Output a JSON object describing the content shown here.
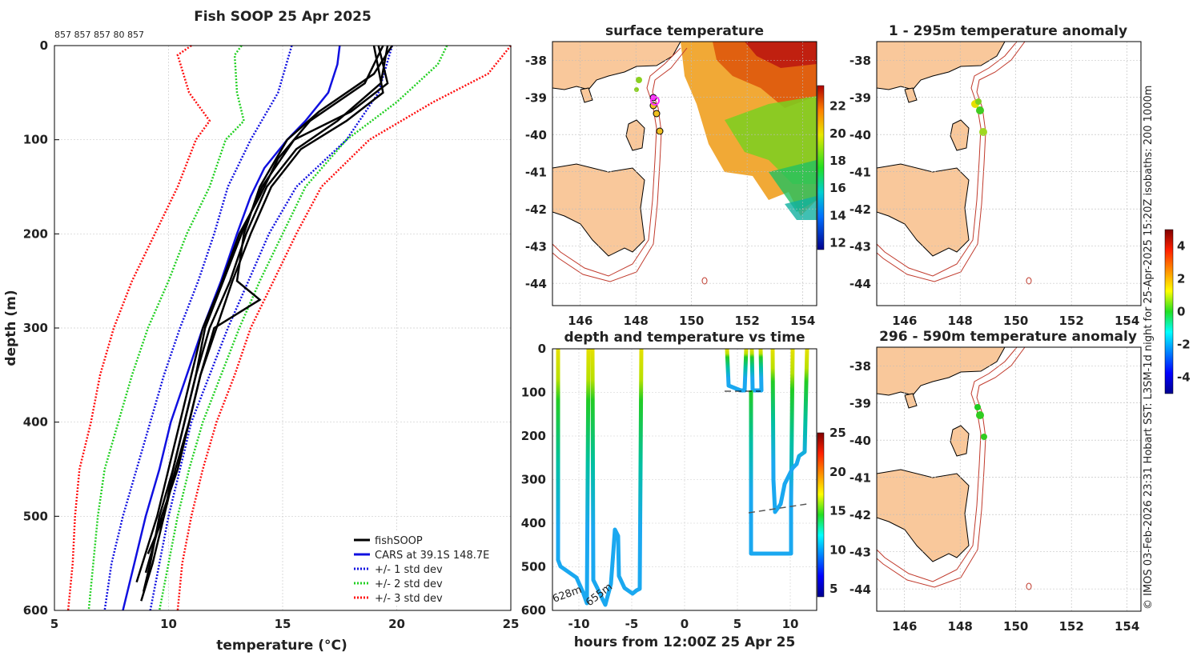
{
  "chart_data": [
    {
      "type": "line",
      "title": "Fish SOOP 25 Apr 2025",
      "top_counts": "857 857 857 80 857",
      "xlabel": "temperature",
      "xlabel_unit": "(°C)",
      "ylabel": "depth (m)",
      "xlim": [
        5,
        25
      ],
      "ylim": [
        0,
        600
      ],
      "xticks": [
        "5",
        "10",
        "15",
        "20",
        "25"
      ],
      "yticks": [
        "0",
        "100",
        "200",
        "300",
        "400",
        "500",
        "600"
      ],
      "legend": [
        "fishSOOP",
        "CARS at 39.1S 148.7E",
        "+/- 1 std dev",
        "+/- 2 std dev",
        "+/- 3 std dev"
      ],
      "series": [
        {
          "name": "CARS at 39.1S 148.7E",
          "color": "#1010e0",
          "style": "solid",
          "depth": [
            0,
            20,
            50,
            80,
            100,
            130,
            160,
            200,
            250,
            300,
            350,
            400,
            450,
            500,
            550,
            600
          ],
          "temp": [
            17.5,
            17.4,
            17.0,
            16.0,
            15.2,
            14.2,
            13.6,
            13.0,
            12.3,
            11.5,
            10.8,
            10.1,
            9.6,
            9.0,
            8.5,
            8.0
          ]
        },
        {
          "name": "-1 std",
          "color": "#1010e0",
          "style": "dot",
          "depth": [
            0,
            50,
            100,
            150,
            200,
            250,
            300,
            350,
            400,
            450,
            500,
            550,
            600
          ],
          "temp": [
            15.4,
            14.8,
            13.6,
            12.6,
            12.0,
            11.3,
            10.5,
            9.8,
            9.2,
            8.6,
            8.0,
            7.5,
            7.2
          ]
        },
        {
          "name": "+1 std",
          "color": "#1010e0",
          "style": "dot",
          "depth": [
            0,
            50,
            100,
            150,
            200,
            250,
            300,
            350,
            400,
            450,
            500,
            550,
            600
          ],
          "temp": [
            19.8,
            19.2,
            17.8,
            15.6,
            14.4,
            13.5,
            12.6,
            11.8,
            11.0,
            10.5,
            10.0,
            9.6,
            9.2
          ]
        },
        {
          "name": "-2 std",
          "color": "#22d022",
          "style": "dot",
          "depth": [
            0,
            10,
            50,
            80,
            100,
            150,
            200,
            250,
            300,
            350,
            400,
            450,
            500,
            550,
            600
          ],
          "temp": [
            13.2,
            12.9,
            13.0,
            13.3,
            12.5,
            11.8,
            10.8,
            10.0,
            9.1,
            8.4,
            7.8,
            7.2,
            6.9,
            6.7,
            6.5
          ]
        },
        {
          "name": "+2 std",
          "color": "#22d022",
          "style": "dot",
          "depth": [
            0,
            20,
            60,
            100,
            150,
            200,
            250,
            300,
            350,
            400,
            450,
            500,
            550,
            600
          ],
          "temp": [
            22.2,
            21.8,
            20.0,
            17.8,
            16.0,
            15.0,
            14.0,
            13.1,
            12.3,
            11.5,
            10.9,
            10.4,
            10.0,
            9.6
          ]
        },
        {
          "name": "-3 std",
          "color": "#ff1010",
          "style": "dot",
          "depth": [
            0,
            10,
            50,
            80,
            100,
            150,
            200,
            250,
            300,
            350,
            400,
            450,
            500,
            550,
            600
          ],
          "temp": [
            11.0,
            10.4,
            10.9,
            11.8,
            11.2,
            10.4,
            9.4,
            8.4,
            7.6,
            7.0,
            6.6,
            6.1,
            5.9,
            5.8,
            5.6
          ]
        },
        {
          "name": "+3 std",
          "color": "#ff1010",
          "style": "dot",
          "depth": [
            0,
            30,
            60,
            100,
            150,
            200,
            250,
            300,
            350,
            400,
            450,
            500,
            550,
            600
          ],
          "temp": [
            25.0,
            24.0,
            21.6,
            18.8,
            16.7,
            15.6,
            14.6,
            13.6,
            12.9,
            12.1,
            11.5,
            11.0,
            10.6,
            10.4
          ]
        },
        {
          "name": "fishSOOP",
          "color": "#000000",
          "style": "solid",
          "profiles": [
            {
              "depth": [
                0,
                40,
                70,
                100,
                150,
                200,
                250,
                300,
                350,
                400,
                450,
                500,
                550,
                580
              ],
              "temp": [
                19.2,
                19.6,
                18.0,
                15.5,
                14.1,
                13.2,
                12.4,
                11.6,
                11.2,
                10.7,
                10.2,
                9.6,
                9.2,
                8.9
              ]
            },
            {
              "depth": [
                0,
                40,
                80,
                110,
                150,
                200,
                250,
                300,
                350,
                400,
                450,
                500,
                550,
                590
              ],
              "temp": [
                19.6,
                19.3,
                17.4,
                15.6,
                14.3,
                13.4,
                12.7,
                11.8,
                11.2,
                10.7,
                10.2,
                9.8,
                9.3,
                8.8
              ]
            },
            {
              "depth": [
                0,
                30,
                70,
                100,
                150,
                200,
                250,
                270,
                300,
                350,
                400,
                450,
                500,
                560
              ],
              "temp": [
                19.8,
                19.0,
                16.6,
                15.2,
                14.0,
                13.3,
                13.0,
                14.0,
                12.0,
                11.4,
                10.9,
                10.4,
                9.7,
                9.0
              ]
            },
            {
              "depth": [
                0,
                50,
                80,
                110,
                150,
                200,
                250,
                300,
                350,
                400,
                450,
                500,
                540
              ],
              "temp": [
                19.0,
                19.4,
                17.8,
                15.8,
                14.5,
                13.6,
                12.8,
                12.1,
                11.4,
                10.9,
                10.3,
                9.8,
                9.1
              ]
            },
            {
              "depth": [
                0,
                40,
                80,
                120,
                160,
                200,
                260,
                300,
                350,
                400,
                450,
                500,
                570
              ],
              "temp": [
                19.4,
                18.6,
                16.2,
                14.8,
                14.0,
                13.1,
                12.2,
                11.5,
                11.0,
                10.5,
                10.0,
                9.5,
                8.6
              ]
            }
          ]
        }
      ]
    },
    {
      "type": "heatmap",
      "title": "surface temperature",
      "yticks": [
        "-38",
        "-39",
        "-40",
        "-41",
        "-42",
        "-43",
        "-44"
      ],
      "xticks": [
        "146",
        "148",
        "150",
        "152",
        "154"
      ],
      "colorbar_ticks": [
        "22",
        "20",
        "18",
        "16",
        "14",
        "12"
      ]
    },
    {
      "type": "scatter",
      "title": "1 - 295m temperature anomaly",
      "yticks": [
        "-38",
        "-39",
        "-40",
        "-41",
        "-42",
        "-43",
        "-44"
      ],
      "xticks": [
        "146",
        "148",
        "150",
        "152",
        "154"
      ],
      "colorbar_ticks": [
        "4",
        "2",
        "0",
        "-2",
        "-4"
      ],
      "points": [
        {
          "lon": 148.5,
          "lat": -39.15,
          "anom": 1.2
        },
        {
          "lon": 148.7,
          "lat": -39.35,
          "anom": 0.3
        },
        {
          "lon": 148.6,
          "lat": -39.2,
          "anom": 0.6
        },
        {
          "lon": 148.85,
          "lat": -39.95,
          "anom": 0.8
        }
      ]
    },
    {
      "type": "line",
      "title": "depth and temperature vs time",
      "xlabel": "hours from 12:00Z 25 Apr 25",
      "xlim": [
        -12.5,
        12.5
      ],
      "ylim": [
        0,
        600
      ],
      "xticks": [
        "-10",
        "-5",
        "0",
        "5",
        "10"
      ],
      "yticks": [
        "0",
        "100",
        "200",
        "300",
        "400",
        "500",
        "600"
      ],
      "colorbar_ticks": [
        "25",
        "20",
        "15",
        "10",
        "5"
      ],
      "annotations": [
        "628m",
        "655m"
      ]
    },
    {
      "type": "scatter",
      "title": "296 - 590m temperature anomaly",
      "yticks": [
        "-38",
        "-39",
        "-40",
        "-41",
        "-42",
        "-43",
        "-44"
      ],
      "xticks": [
        "146",
        "148",
        "150",
        "152",
        "154"
      ],
      "points": [
        {
          "lon": 148.65,
          "lat": -39.1,
          "anom": 0.2
        },
        {
          "lon": 148.7,
          "lat": -39.3,
          "anom": 0.1
        },
        {
          "lon": 148.9,
          "lat": -39.95,
          "anom": 0.1
        }
      ]
    }
  ],
  "side_caption": "© IMOS 03-Feb-2026 23:31 Hobart SST: L3SM-1d night for 25-Apr-2025 15:20Z isobaths: 200  1000m",
  "colors": {
    "land": "#f9c89b",
    "isobath": "#c0392b",
    "grid": "#c8c8c8"
  }
}
